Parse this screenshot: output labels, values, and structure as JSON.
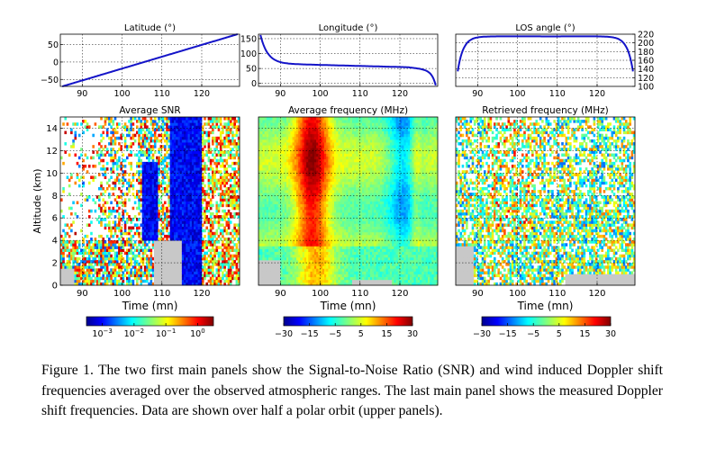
{
  "top_panels": [
    {
      "id": "lat",
      "title": "Latitude (°)",
      "xticks": [
        90,
        100,
        110,
        120
      ],
      "yticks": [
        50,
        0,
        -50
      ],
      "ytick_labels": [
        "50",
        "0",
        "−50"
      ],
      "ytick_side": "left",
      "ylim": [
        -70,
        80
      ],
      "curve": "latitude"
    },
    {
      "id": "lon",
      "title": "Longitude (°)",
      "xticks": [
        90,
        100,
        110,
        120
      ],
      "yticks": [
        150,
        100,
        50,
        0
      ],
      "ytick_labels": [
        "150",
        "100",
        "50",
        "0"
      ],
      "ytick_side": "left",
      "ylim": [
        -10,
        165
      ],
      "curve": "longitude"
    },
    {
      "id": "los",
      "title": "LOS angle (°)",
      "xticks": [
        90,
        100,
        110,
        120
      ],
      "yticks": [
        220,
        200,
        180,
        160,
        140,
        120,
        100
      ],
      "ytick_labels": [
        "220",
        "200",
        "180",
        "160",
        "140",
        "120",
        "100"
      ],
      "ytick_side": "right",
      "ylim": [
        100,
        220
      ],
      "curve": "los"
    }
  ],
  "main_panels": [
    {
      "id": "snr",
      "title": "Average SNR",
      "xlabel": "Time (mn)",
      "xticks": [
        90,
        100,
        110,
        120
      ],
      "yticks": [
        0,
        2,
        4,
        6,
        8,
        10,
        12,
        14
      ],
      "show_y": true,
      "pattern": "snr"
    },
    {
      "id": "avgfreq",
      "title": "Average frequency (MHz)",
      "xlabel": "Time (mn)",
      "xticks": [
        90,
        100,
        110,
        120
      ],
      "yticks": [
        0,
        2,
        4,
        6,
        8,
        10,
        12,
        14
      ],
      "show_y": false,
      "pattern": "avg"
    },
    {
      "id": "retfreq",
      "title": "Retrieved frequency  (MHz)",
      "xlabel": "Time (mn)",
      "xticks": [
        90,
        100,
        110,
        120
      ],
      "yticks": [
        0,
        2,
        4,
        6,
        8,
        10,
        12,
        14
      ],
      "show_y": false,
      "pattern": "ret"
    }
  ],
  "ylabel": "Altitude (km)",
  "colorbars": [
    {
      "id": "cb-snr",
      "labels": [
        "10",
        "10",
        "10",
        "10"
      ],
      "exponents": [
        "−3",
        "−2",
        "−1",
        "0"
      ]
    },
    {
      "id": "cb-avg",
      "labels": [
        "−30",
        "−15",
        "−5",
        "5",
        "15",
        "30"
      ]
    },
    {
      "id": "cb-ret",
      "labels": [
        "−30",
        "−15",
        "−5",
        "5",
        "15",
        "30"
      ]
    }
  ],
  "colors": {
    "curve": "#1414c8",
    "missing": "#c8c8c8",
    "grid": "#000000"
  },
  "caption": "Figure 1. The two first main panels show the Signal-to-Noise Ratio (SNR) and wind induced Doppler shift frequencies averaged over the observed atmospheric ranges. The last main panel shows the measured Doppler shift frequencies.  Data are shown over half a polar orbit (upper panels)."
}
